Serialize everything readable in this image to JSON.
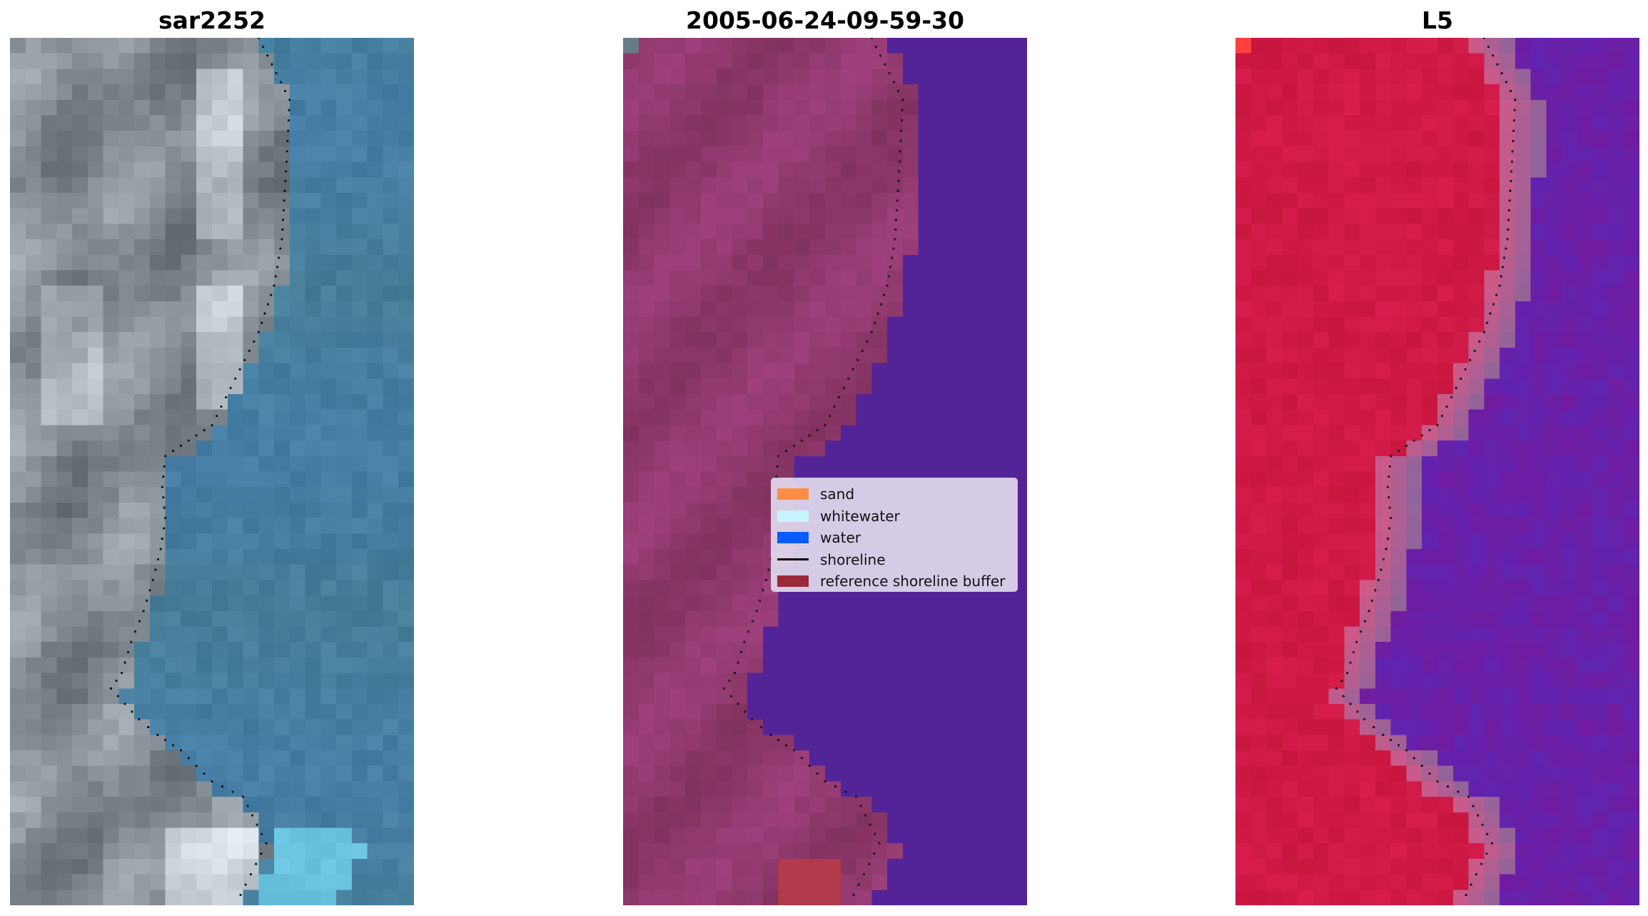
{
  "panels": [
    {
      "title": "sar2252"
    },
    {
      "title": "2005-06-24-09-59-30"
    },
    {
      "title": "L5"
    }
  ],
  "legend": {
    "items": [
      {
        "label": "sand",
        "color": "#ff8c42",
        "kind": "patch"
      },
      {
        "label": "whitewater",
        "color": "#c8f4ff",
        "kind": "patch"
      },
      {
        "label": "water",
        "color": "#0a5cff",
        "kind": "patch"
      },
      {
        "label": "shoreline",
        "color": "#000000",
        "kind": "line"
      },
      {
        "label": "reference shoreline buffer",
        "color": "#9a2a3a",
        "kind": "patch"
      }
    ]
  },
  "colors": {
    "land_rgb": "#7f8c98",
    "sea_rgb": "#4a7a9e",
    "land_classified": "#8e3a6e",
    "water_classified": "#522497",
    "buffer": "#b93a4a",
    "index_land": "#c41a44",
    "index_water": "#6a1aa0"
  }
}
